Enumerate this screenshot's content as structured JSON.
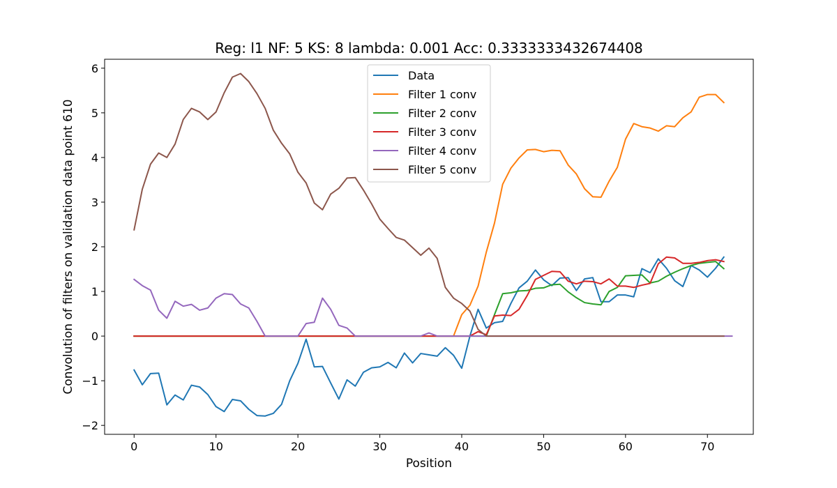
{
  "chart_data": {
    "type": "line",
    "title": "Reg: l1  NF: 5  KS: 8  lambda: 0.001 Acc: 0.3333333432674408",
    "xlabel": "Position",
    "ylabel": "Convolution of filters on validation data point 610",
    "xlim": [
      -3.6,
      75.6
    ],
    "ylim": [
      -2.2,
      6.2
    ],
    "xticks": [
      0,
      10,
      20,
      30,
      40,
      50,
      60,
      70
    ],
    "yticks": [
      -2,
      -1,
      0,
      1,
      2,
      3,
      4,
      5,
      6
    ],
    "ytick_labels": [
      "−2",
      "−1",
      "0",
      "1",
      "2",
      "3",
      "4",
      "5",
      "6"
    ],
    "grid": false,
    "legend_position": "top-center",
    "x_start": 0,
    "series": [
      {
        "name": "Data",
        "color": "#1f77b4",
        "values": [
          -0.76,
          -1.09,
          -0.84,
          -0.83,
          -1.54,
          -1.32,
          -1.43,
          -1.1,
          -1.14,
          -1.31,
          -1.58,
          -1.69,
          -1.42,
          -1.45,
          -1.64,
          -1.78,
          -1.79,
          -1.73,
          -1.53,
          -1.0,
          -0.61,
          -0.07,
          -0.69,
          -0.68,
          -1.05,
          -1.41,
          -0.98,
          -1.12,
          -0.81,
          -0.71,
          -0.69,
          -0.59,
          -0.71,
          -0.38,
          -0.6,
          -0.39,
          -0.42,
          -0.45,
          -0.26,
          -0.43,
          -0.72,
          0.0,
          0.6,
          0.18,
          0.3,
          0.33,
          0.73,
          1.08,
          1.23,
          1.48,
          1.26,
          1.13,
          1.3,
          1.31,
          1.02,
          1.28,
          1.31,
          0.77,
          0.77,
          0.92,
          0.92,
          0.88,
          1.51,
          1.42,
          1.73,
          1.52,
          1.24,
          1.11,
          1.58,
          1.48,
          1.32,
          1.52,
          1.77
        ]
      },
      {
        "name": "Filter 1 conv",
        "color": "#ff7f0e",
        "values": [
          0,
          0,
          0,
          0,
          0,
          0,
          0,
          0,
          0,
          0,
          0,
          0,
          0,
          0,
          0,
          0,
          0,
          0,
          0,
          0,
          0,
          0,
          0,
          0,
          0,
          0,
          0,
          0,
          0,
          0,
          0,
          0,
          0,
          0,
          0,
          0,
          0,
          0,
          0,
          0,
          0.48,
          0.69,
          1.12,
          1.88,
          2.53,
          3.4,
          3.76,
          3.99,
          4.17,
          4.18,
          4.13,
          4.16,
          4.15,
          3.83,
          3.63,
          3.3,
          3.12,
          3.11,
          3.47,
          3.78,
          4.41,
          4.76,
          4.69,
          4.66,
          4.59,
          4.71,
          4.69,
          4.89,
          5.02,
          5.35,
          5.41,
          5.41,
          5.23
        ]
      },
      {
        "name": "Filter 2 conv",
        "color": "#2ca02c",
        "values": [
          0,
          0,
          0,
          0,
          0,
          0,
          0,
          0,
          0,
          0,
          0,
          0,
          0,
          0,
          0,
          0,
          0,
          0,
          0,
          0,
          0,
          0,
          0,
          0,
          0,
          0,
          0,
          0,
          0,
          0,
          0,
          0,
          0,
          0,
          0,
          0,
          0,
          0,
          0,
          0,
          0,
          0,
          0,
          0,
          0.48,
          0.95,
          0.97,
          1.01,
          1.02,
          1.07,
          1.08,
          1.15,
          1.16,
          0.99,
          0.86,
          0.75,
          0.72,
          0.7,
          1.0,
          1.09,
          1.35,
          1.36,
          1.37,
          1.19,
          1.23,
          1.34,
          1.43,
          1.51,
          1.58,
          1.63,
          1.65,
          1.67,
          1.51
        ]
      },
      {
        "name": "Filter 3 conv",
        "color": "#d62728",
        "values": [
          0,
          0,
          0,
          0,
          0,
          0,
          0,
          0,
          0,
          0,
          0,
          0,
          0,
          0,
          0,
          0,
          0,
          0,
          0,
          0,
          0,
          0,
          0,
          0,
          0,
          0,
          0,
          0,
          0,
          0,
          0,
          0,
          0,
          0,
          0,
          0,
          0,
          0,
          0,
          0,
          0,
          0,
          0.1,
          0.03,
          0.45,
          0.47,
          0.46,
          0.6,
          0.91,
          1.27,
          1.36,
          1.45,
          1.44,
          1.23,
          1.17,
          1.23,
          1.22,
          1.17,
          1.28,
          1.12,
          1.12,
          1.09,
          1.14,
          1.18,
          1.62,
          1.77,
          1.75,
          1.63,
          1.63,
          1.65,
          1.69,
          1.71,
          1.67
        ]
      },
      {
        "name": "Filter 4 conv",
        "color": "#9467bd",
        "values": [
          1.27,
          1.13,
          1.03,
          0.58,
          0.4,
          0.78,
          0.67,
          0.71,
          0.58,
          0.63,
          0.85,
          0.95,
          0.93,
          0.72,
          0.63,
          0.33,
          0,
          0,
          0,
          0,
          0,
          0.28,
          0.31,
          0.85,
          0.6,
          0.24,
          0.18,
          0,
          0,
          0,
          0,
          0,
          0,
          0,
          0,
          0,
          0.07,
          0,
          0,
          0,
          0,
          0,
          0,
          0,
          0,
          0,
          0,
          0,
          0,
          0,
          0,
          0,
          0,
          0,
          0,
          0,
          0,
          0,
          0,
          0,
          0,
          0,
          0,
          0,
          0,
          0,
          0,
          0,
          0,
          0,
          0,
          0,
          0,
          0
        ]
      },
      {
        "name": "Filter 5 conv",
        "color": "#8c564b",
        "values": [
          2.38,
          3.29,
          3.85,
          4.1,
          4.0,
          4.3,
          4.85,
          5.1,
          5.02,
          4.85,
          5.02,
          5.45,
          5.8,
          5.88,
          5.7,
          5.43,
          5.1,
          4.61,
          4.32,
          4.08,
          3.67,
          3.43,
          2.98,
          2.83,
          3.18,
          3.31,
          3.54,
          3.55,
          3.27,
          2.96,
          2.62,
          2.41,
          2.21,
          2.15,
          1.98,
          1.81,
          1.97,
          1.74,
          1.09,
          0.85,
          0.73,
          0.56,
          0.15,
          0,
          0,
          0,
          0,
          0,
          0,
          0,
          0,
          0,
          0,
          0,
          0,
          0,
          0,
          0,
          0,
          0,
          0,
          0,
          0,
          0,
          0,
          0,
          0,
          0,
          0,
          0,
          0,
          0,
          0
        ]
      }
    ]
  }
}
